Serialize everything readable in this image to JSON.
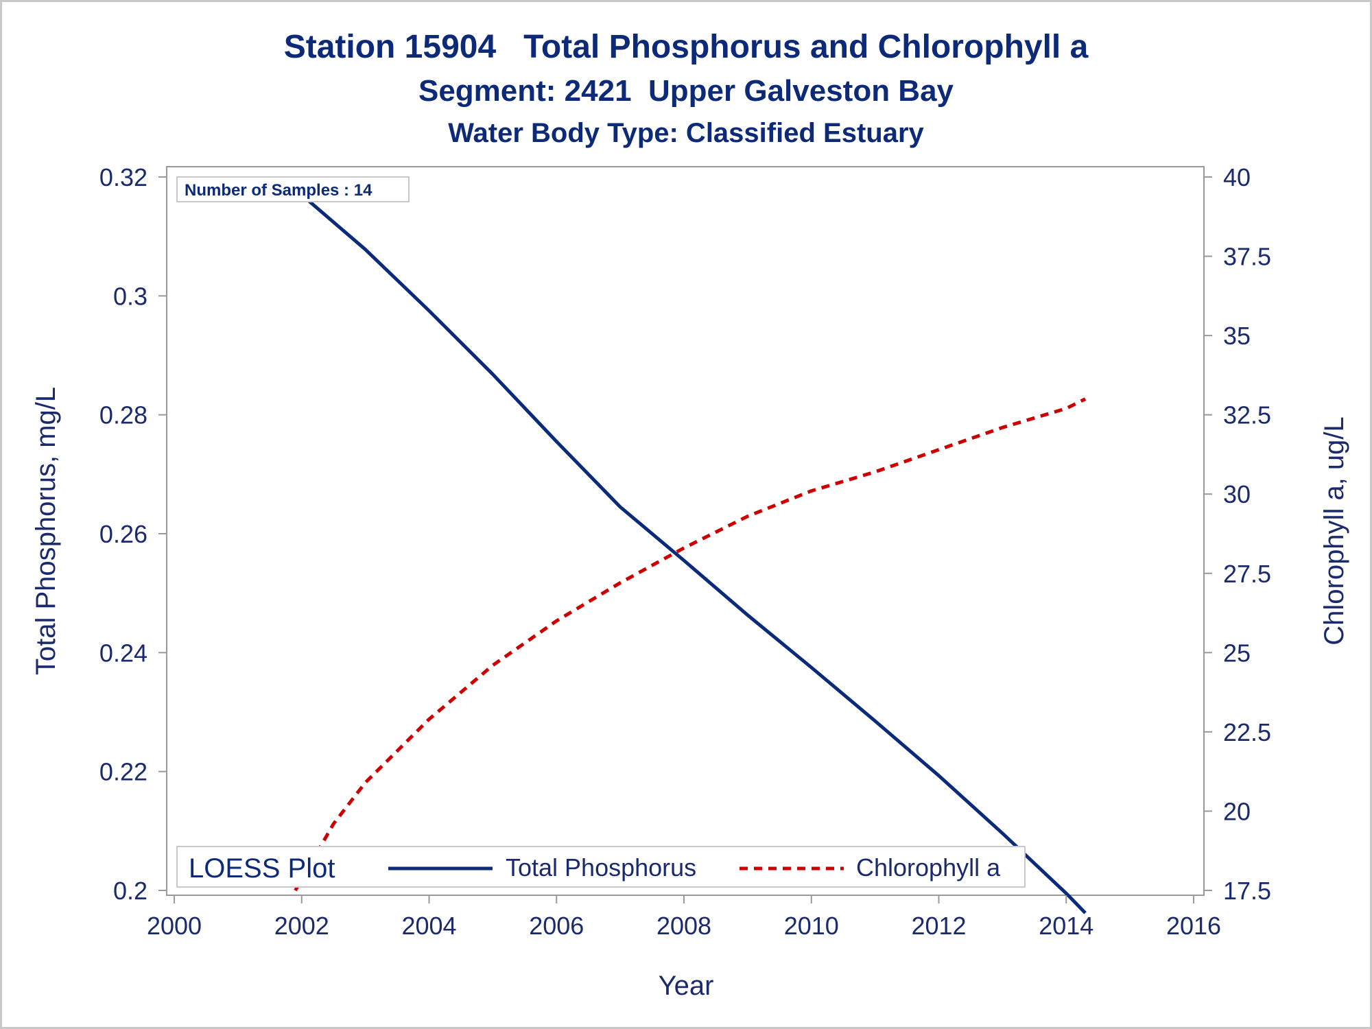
{
  "colors": {
    "text": "#1a2a6c",
    "title": "#0d2a78",
    "phosphorus": "#0c2a7a",
    "chlorophyll": "#cc0000",
    "axis": "#999999",
    "frame": "#c8c8c8"
  },
  "chart_data": {
    "type": "line",
    "title": "Station 15904   Total Phosphorus and Chlorophyll a",
    "subtitle": "Segment: 2421  Upper Galveston Bay",
    "subtitle2": "Water Body Type: Classified Estuary",
    "xlabel": "Year",
    "ylabel": "Total Phosphorus, mg/L",
    "y2label": "Chlorophyll a, ug/L",
    "xlim": [
      2000,
      2016
    ],
    "ylim": [
      0.2,
      0.32
    ],
    "y2lim": [
      17.5,
      40
    ],
    "x_ticks": [
      "2000",
      "2002",
      "2004",
      "2006",
      "2008",
      "2010",
      "2012",
      "2014",
      "2016"
    ],
    "y_ticks": [
      "0.2",
      "0.22",
      "0.24",
      "0.26",
      "0.28",
      "0.3",
      "0.32"
    ],
    "y2_ticks": [
      "17.5",
      "20",
      "22.5",
      "25",
      "27.5",
      "30",
      "32.5",
      "35",
      "37.5",
      "40"
    ],
    "inset_label": "Number of Samples : 14",
    "legend": {
      "title": "LOESS Plot",
      "placement": "bottom-inside",
      "entries": [
        "Total Phosphorus",
        "Chlorophyll a"
      ]
    },
    "grid": false,
    "series": [
      {
        "name": "Total Phosphorus",
        "axis": "left",
        "style": "solid",
        "x": [
          2002.0,
          2003.0,
          2004.0,
          2005.0,
          2006.0,
          2007.0,
          2008.0,
          2009.0,
          2010.0,
          2011.0,
          2012.0,
          2013.0,
          2014.0,
          2014.3
        ],
        "y": [
          0.317,
          0.3078,
          0.2975,
          0.2868,
          0.2755,
          0.2645,
          0.2555,
          0.2463,
          0.2375,
          0.2285,
          0.2193,
          0.2096,
          0.1995,
          0.1962
        ]
      },
      {
        "name": "Chlorophyll a",
        "axis": "right",
        "style": "dashed",
        "x": [
          2001.9,
          2002.5,
          2003.0,
          2003.5,
          2004.0,
          2005.0,
          2006.0,
          2007.0,
          2008.0,
          2009.0,
          2010.0,
          2011.0,
          2012.0,
          2013.0,
          2014.0,
          2014.3
        ],
        "y": [
          17.5,
          19.6,
          20.9,
          21.9,
          22.9,
          24.6,
          26.0,
          27.2,
          28.3,
          29.3,
          30.1,
          30.7,
          31.4,
          32.1,
          32.7,
          33.0
        ]
      }
    ]
  }
}
